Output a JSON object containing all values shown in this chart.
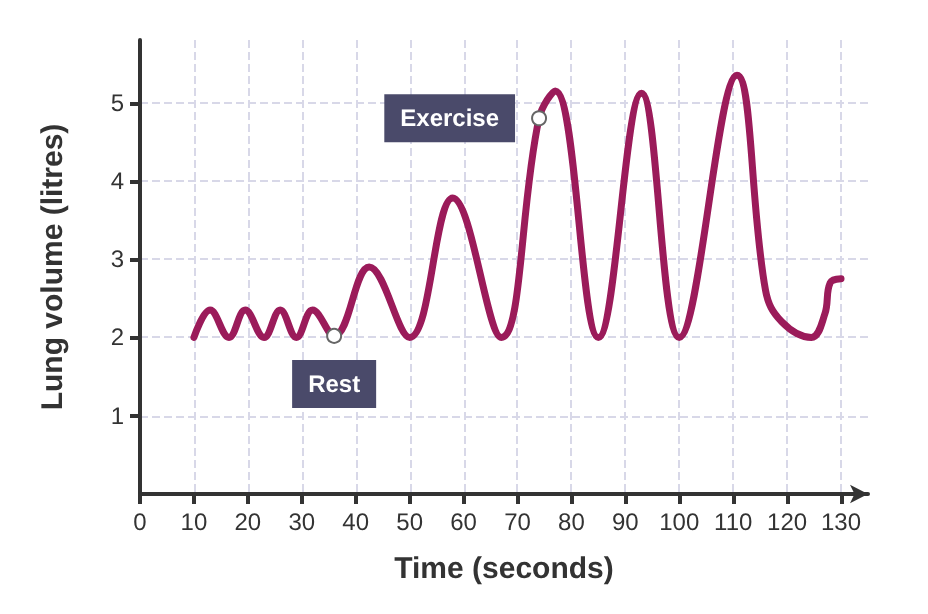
{
  "chart_data": {
    "type": "line",
    "xlabel": "Time (seconds)",
    "ylabel": "Lung volume (litres)",
    "x": [
      10,
      13,
      16.5,
      19.5,
      23,
      26,
      29,
      32,
      36,
      42.5,
      50,
      58,
      67,
      74,
      77,
      85,
      93,
      100,
      110.7,
      116,
      119,
      124.5,
      127,
      128,
      130
    ],
    "series": [
      {
        "color": "#9b1b5a",
        "values": [
          2.0,
          2.35,
          2.0,
          2.35,
          2.0,
          2.35,
          2.0,
          2.35,
          2.02,
          2.9,
          2.0,
          3.78,
          2.0,
          4.8,
          5.15,
          2.0,
          5.12,
          2.0,
          5.35,
          2.6,
          2.2,
          2.0,
          2.3,
          2.7,
          2.75
        ]
      }
    ],
    "xlim": [
      0,
      135
    ],
    "xticks": [
      0,
      10,
      20,
      30,
      40,
      50,
      60,
      70,
      80,
      90,
      100,
      110,
      120,
      130
    ],
    "ylim": [
      0,
      5.8
    ],
    "yticks": [
      1,
      2,
      3,
      4,
      5
    ],
    "grid": true,
    "marker": "none",
    "line_style": "solid",
    "annotations": [
      {
        "text": "Exercise",
        "x": 74,
        "y": 4.8
      },
      {
        "text": "Rest",
        "x": 36,
        "y": 2.02
      }
    ]
  }
}
